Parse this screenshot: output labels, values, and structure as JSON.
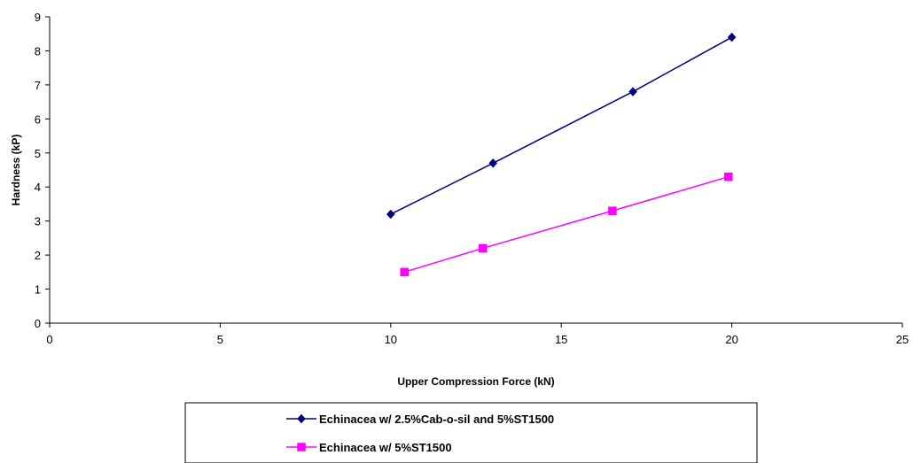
{
  "chart_data": {
    "type": "line",
    "xlabel": "Upper Compression Force (kN)",
    "ylabel": "Hardness (kP)",
    "xlim": [
      0,
      25
    ],
    "ylim": [
      0,
      9
    ],
    "xticks": [
      0,
      5,
      10,
      15,
      20,
      25
    ],
    "yticks": [
      0,
      1,
      2,
      3,
      4,
      5,
      6,
      7,
      8,
      9
    ],
    "grid": false,
    "legend_position": "bottom",
    "series": [
      {
        "name": "Echinacea w/ 2.5%Cab-o-sil and 5%ST1500",
        "color": "#000080",
        "marker": "diamond",
        "x": [
          10,
          13,
          17.1,
          20
        ],
        "y": [
          3.2,
          4.7,
          6.8,
          8.4
        ]
      },
      {
        "name": "Echinacea w/ 5%ST1500",
        "color": "#ff00ff",
        "marker": "square",
        "x": [
          10.4,
          12.7,
          16.5,
          19.9
        ],
        "y": [
          1.5,
          2.2,
          3.3,
          4.3
        ]
      }
    ]
  }
}
